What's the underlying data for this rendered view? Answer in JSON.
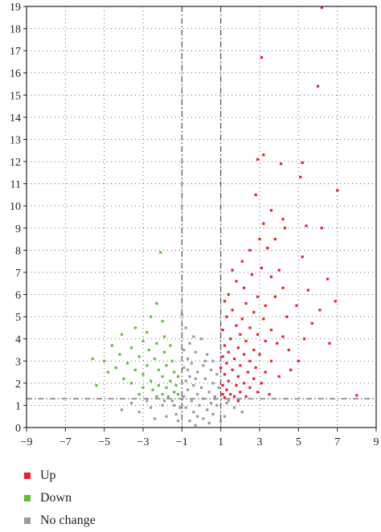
{
  "chart_data": {
    "type": "scatter",
    "title": "",
    "xlabel": "",
    "ylabel": "",
    "xlim": [
      -9,
      9
    ],
    "ylim": [
      0,
      19
    ],
    "x_ticks": [
      "-9",
      "-7",
      "-5",
      "-3",
      "-1",
      "1",
      "3",
      "5",
      "7",
      "9"
    ],
    "y_ticks": [
      "0",
      "1",
      "2",
      "3",
      "4",
      "5",
      "6",
      "7",
      "8",
      "9",
      "10",
      "11",
      "12",
      "13",
      "14",
      "15",
      "16",
      "17",
      "18",
      "19"
    ],
    "grid": true,
    "thresholds": {
      "x": [
        -1,
        1
      ],
      "y": 1.3
    },
    "legend_position": "bottom-left",
    "series": [
      {
        "name": "Up",
        "color": "#e8202a",
        "points": [
          [
            6.2,
            18.95
          ],
          [
            3.1,
            16.7
          ],
          [
            6.0,
            15.4
          ],
          [
            2.9,
            12.1
          ],
          [
            5.2,
            11.95
          ],
          [
            3.2,
            12.3
          ],
          [
            4.1,
            11.9
          ],
          [
            5.1,
            11.3
          ],
          [
            7.0,
            10.7
          ],
          [
            2.8,
            10.5
          ],
          [
            3.6,
            9.8
          ],
          [
            4.2,
            9.4
          ],
          [
            5.4,
            9.1
          ],
          [
            3.2,
            9.2
          ],
          [
            4.3,
            9.0
          ],
          [
            6.2,
            9.0
          ],
          [
            3.0,
            8.5
          ],
          [
            3.8,
            8.5
          ],
          [
            2.5,
            8.0
          ],
          [
            3.4,
            8.1
          ],
          [
            5.2,
            7.7
          ],
          [
            2.1,
            7.5
          ],
          [
            3.1,
            7.2
          ],
          [
            4.0,
            7.1
          ],
          [
            1.6,
            7.1
          ],
          [
            2.6,
            6.9
          ],
          [
            3.6,
            6.8
          ],
          [
            6.5,
            6.7
          ],
          [
            1.8,
            6.6
          ],
          [
            2.2,
            6.3
          ],
          [
            4.2,
            6.3
          ],
          [
            5.5,
            6.2
          ],
          [
            1.4,
            6.0
          ],
          [
            2.9,
            5.9
          ],
          [
            3.8,
            5.9
          ],
          [
            6.9,
            5.7
          ],
          [
            1.2,
            5.7
          ],
          [
            2.3,
            5.6
          ],
          [
            3.3,
            5.5
          ],
          [
            4.9,
            5.5
          ],
          [
            6.1,
            5.3
          ],
          [
            1.6,
            5.3
          ],
          [
            2.7,
            5.2
          ],
          [
            4.4,
            5.0
          ],
          [
            1.3,
            5.0
          ],
          [
            2.1,
            4.9
          ],
          [
            3.2,
            4.9
          ],
          [
            5.7,
            4.7
          ],
          [
            1.8,
            4.6
          ],
          [
            2.5,
            4.5
          ],
          [
            3.6,
            4.4
          ],
          [
            1.1,
            4.4
          ],
          [
            2.0,
            4.2
          ],
          [
            2.9,
            4.2
          ],
          [
            4.2,
            4.1
          ],
          [
            6.6,
            3.8
          ],
          [
            1.5,
            4.0
          ],
          [
            2.3,
            3.9
          ],
          [
            3.3,
            3.9
          ],
          [
            1.2,
            3.7
          ],
          [
            1.9,
            3.6
          ],
          [
            2.7,
            3.5
          ],
          [
            4.5,
            3.5
          ],
          [
            1.4,
            3.4
          ],
          [
            2.2,
            3.3
          ],
          [
            3.0,
            3.3
          ],
          [
            1.1,
            3.2
          ],
          [
            1.7,
            3.1
          ],
          [
            2.5,
            3.0
          ],
          [
            3.6,
            3.0
          ],
          [
            5.0,
            3.0
          ],
          [
            1.3,
            2.9
          ],
          [
            2.0,
            2.8
          ],
          [
            2.8,
            2.7
          ],
          [
            1.0,
            2.7
          ],
          [
            1.6,
            2.6
          ],
          [
            2.4,
            2.5
          ],
          [
            3.3,
            2.5
          ],
          [
            1.2,
            2.4
          ],
          [
            1.9,
            2.3
          ],
          [
            2.7,
            2.2
          ],
          [
            4.0,
            2.3
          ],
          [
            1.4,
            2.1
          ],
          [
            2.2,
            2.0
          ],
          [
            3.1,
            2.0
          ],
          [
            1.1,
            1.9
          ],
          [
            1.8,
            1.9
          ],
          [
            2.5,
            1.8
          ],
          [
            1.3,
            1.7
          ],
          [
            2.0,
            1.6
          ],
          [
            2.9,
            1.6
          ],
          [
            1.5,
            1.5
          ],
          [
            1.1,
            1.5
          ],
          [
            2.3,
            1.4
          ],
          [
            1.7,
            1.4
          ],
          [
            8.0,
            1.45
          ],
          [
            1.2,
            1.35
          ],
          [
            3.5,
            1.5
          ],
          [
            1.9,
            1.2
          ],
          [
            4.6,
            2.6
          ],
          [
            5.3,
            4.0
          ],
          [
            3.9,
            3.8
          ]
        ]
      },
      {
        "name": "Down",
        "color": "#5bbf3a",
        "points": [
          [
            -2.1,
            7.9
          ],
          [
            -2.3,
            5.6
          ],
          [
            -2.6,
            5.0
          ],
          [
            -2.0,
            4.8
          ],
          [
            -3.4,
            4.5
          ],
          [
            -2.8,
            4.3
          ],
          [
            -4.1,
            4.2
          ],
          [
            -1.9,
            4.1
          ],
          [
            -3.0,
            3.9
          ],
          [
            -2.3,
            3.8
          ],
          [
            -1.6,
            3.7
          ],
          [
            -4.6,
            3.7
          ],
          [
            -3.6,
            3.6
          ],
          [
            -2.7,
            3.5
          ],
          [
            -1.9,
            3.4
          ],
          [
            -5.6,
            3.1
          ],
          [
            -4.2,
            3.3
          ],
          [
            -3.2,
            3.2
          ],
          [
            -2.4,
            3.1
          ],
          [
            -1.5,
            3.0
          ],
          [
            -5.0,
            3.0
          ],
          [
            -3.8,
            2.9
          ],
          [
            -2.8,
            2.8
          ],
          [
            -1.8,
            2.8
          ],
          [
            -4.4,
            2.7
          ],
          [
            -3.4,
            2.6
          ],
          [
            -2.2,
            2.6
          ],
          [
            -1.4,
            2.5
          ],
          [
            -4.8,
            2.5
          ],
          [
            -3.0,
            2.4
          ],
          [
            -2.0,
            2.3
          ],
          [
            -1.2,
            2.3
          ],
          [
            -4.0,
            2.2
          ],
          [
            -2.6,
            2.1
          ],
          [
            -1.6,
            2.1
          ],
          [
            -3.6,
            2.0
          ],
          [
            -2.2,
            1.9
          ],
          [
            -1.3,
            1.9
          ],
          [
            -3.0,
            1.8
          ],
          [
            -1.8,
            1.8
          ],
          [
            -5.4,
            1.9
          ],
          [
            -2.5,
            1.7
          ],
          [
            -1.4,
            1.6
          ],
          [
            -2.0,
            1.5
          ],
          [
            -1.2,
            1.5
          ],
          [
            -3.2,
            1.5
          ],
          [
            -1.7,
            1.4
          ],
          [
            -2.3,
            1.4
          ]
        ]
      },
      {
        "name": "No change",
        "color": "#9a9a9a",
        "points": [
          [
            -1.0,
            5.1
          ],
          [
            -0.8,
            4.5
          ],
          [
            -0.4,
            4.1
          ],
          [
            0.0,
            4.0
          ],
          [
            -0.6,
            3.8
          ],
          [
            -0.9,
            3.5
          ],
          [
            -0.3,
            3.4
          ],
          [
            0.3,
            3.3
          ],
          [
            -0.7,
            3.1
          ],
          [
            0.6,
            3.0
          ],
          [
            -0.5,
            2.9
          ],
          [
            0.1,
            2.8
          ],
          [
            -0.9,
            2.7
          ],
          [
            0.5,
            2.6
          ],
          [
            -0.2,
            2.5
          ],
          [
            0.8,
            2.4
          ],
          [
            -0.6,
            2.3
          ],
          [
            0.2,
            2.2
          ],
          [
            -0.8,
            2.1
          ],
          [
            0.6,
            2.0
          ],
          [
            -0.4,
            1.9
          ],
          [
            0.0,
            1.8
          ],
          [
            0.9,
            1.8
          ],
          [
            -0.7,
            1.7
          ],
          [
            0.4,
            1.6
          ],
          [
            -0.2,
            1.5
          ],
          [
            0.7,
            1.4
          ],
          [
            -0.9,
            1.4
          ],
          [
            0.1,
            1.3
          ],
          [
            -0.5,
            1.2
          ],
          [
            0.5,
            1.1
          ],
          [
            -0.1,
            1.0
          ],
          [
            0.8,
            1.0
          ],
          [
            -0.8,
            0.9
          ],
          [
            0.3,
            0.8
          ],
          [
            -0.4,
            0.7
          ],
          [
            0.6,
            0.6
          ],
          [
            -0.2,
            0.5
          ],
          [
            0.1,
            0.4
          ],
          [
            -0.6,
            0.3
          ],
          [
            0.4,
            0.2
          ],
          [
            -0.3,
            0.1
          ],
          [
            -1.5,
            1.2
          ],
          [
            -2.0,
            1.0
          ],
          [
            -2.6,
            0.9
          ],
          [
            -3.2,
            0.7
          ],
          [
            -4.1,
            0.8
          ],
          [
            -1.3,
            0.6
          ],
          [
            -1.8,
            0.5
          ],
          [
            -2.4,
            0.4
          ],
          [
            -3.6,
            1.1
          ],
          [
            1.3,
            1.1
          ],
          [
            1.7,
            0.9
          ],
          [
            2.1,
            0.7
          ],
          [
            1.2,
            0.5
          ],
          [
            -1.1,
            0.9
          ],
          [
            -1.2,
            0.3
          ],
          [
            1.0,
            0.3
          ],
          [
            -0.3,
            2.2
          ],
          [
            0.2,
            3.0
          ],
          [
            -0.7,
            2.6
          ],
          [
            0.7,
            1.3
          ],
          [
            -1.4,
            1.0
          ],
          [
            1.4,
            1.2
          ],
          [
            -2.8,
            1.2
          ],
          [
            -1.9,
            1.2
          ]
        ]
      }
    ]
  }
}
